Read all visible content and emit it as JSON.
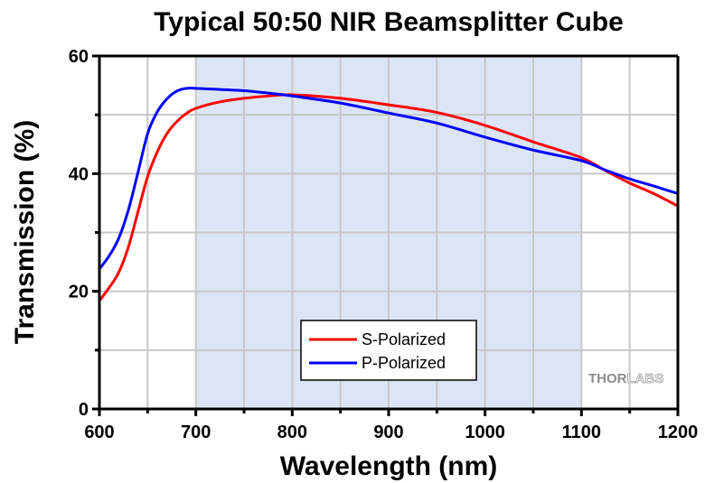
{
  "chart_data": {
    "type": "line",
    "title": "Typical 50:50 NIR Beamsplitter Cube",
    "xlabel": "Wavelength (nm)",
    "ylabel": "Transmission (%)",
    "xlim": [
      600,
      1200
    ],
    "ylim": [
      0,
      60
    ],
    "x_ticks": [
      600,
      700,
      800,
      900,
      1000,
      1100,
      1200
    ],
    "x_minor_ticks": [
      650,
      750,
      850,
      950,
      1050,
      1150
    ],
    "y_ticks": [
      0,
      20,
      40,
      60
    ],
    "y_minor_ticks": [
      10,
      30,
      50
    ],
    "x_tick_labels": [
      "600",
      "700",
      "800",
      "900",
      "1000",
      "1100",
      "1200"
    ],
    "y_tick_labels": [
      "0",
      "20",
      "40",
      "60"
    ],
    "grid": true,
    "highlight_band": {
      "x": [
        700,
        1100
      ],
      "color": "#dce5f5"
    },
    "legend": {
      "placement": "bottom-center"
    },
    "series": [
      {
        "name": "S-Polarized",
        "color": "#ff0000",
        "x": [
          600,
          610,
          620,
          630,
          640,
          650,
          660,
          670,
          680,
          690,
          700,
          725,
          750,
          775,
          800,
          850,
          900,
          950,
          1000,
          1050,
          1100,
          1125,
          1150,
          1175,
          1200
        ],
        "values": [
          18.4,
          20.6,
          23.2,
          27.5,
          33.5,
          39.5,
          43.7,
          46.8,
          48.8,
          50.2,
          51.1,
          52.2,
          52.8,
          53.2,
          53.4,
          52.8,
          51.7,
          50.4,
          48.2,
          45.4,
          42.7,
          40.5,
          38.4,
          36.6,
          34.5
        ]
      },
      {
        "name": "P-Polarized",
        "color": "#0000ff",
        "x": [
          600,
          610,
          620,
          630,
          640,
          650,
          660,
          670,
          680,
          690,
          700,
          725,
          750,
          775,
          800,
          850,
          900,
          950,
          1000,
          1050,
          1100,
          1125,
          1150,
          1175,
          1200
        ],
        "values": [
          23.8,
          26.0,
          29.0,
          33.8,
          40.2,
          46.8,
          50.5,
          52.7,
          54.0,
          54.5,
          54.5,
          54.3,
          54.1,
          53.7,
          53.2,
          52.0,
          50.3,
          48.6,
          46.2,
          44.0,
          42.2,
          40.6,
          39.1,
          37.9,
          36.6
        ]
      }
    ]
  },
  "logo": {
    "part1": "THOR",
    "part2": "LABS"
  }
}
